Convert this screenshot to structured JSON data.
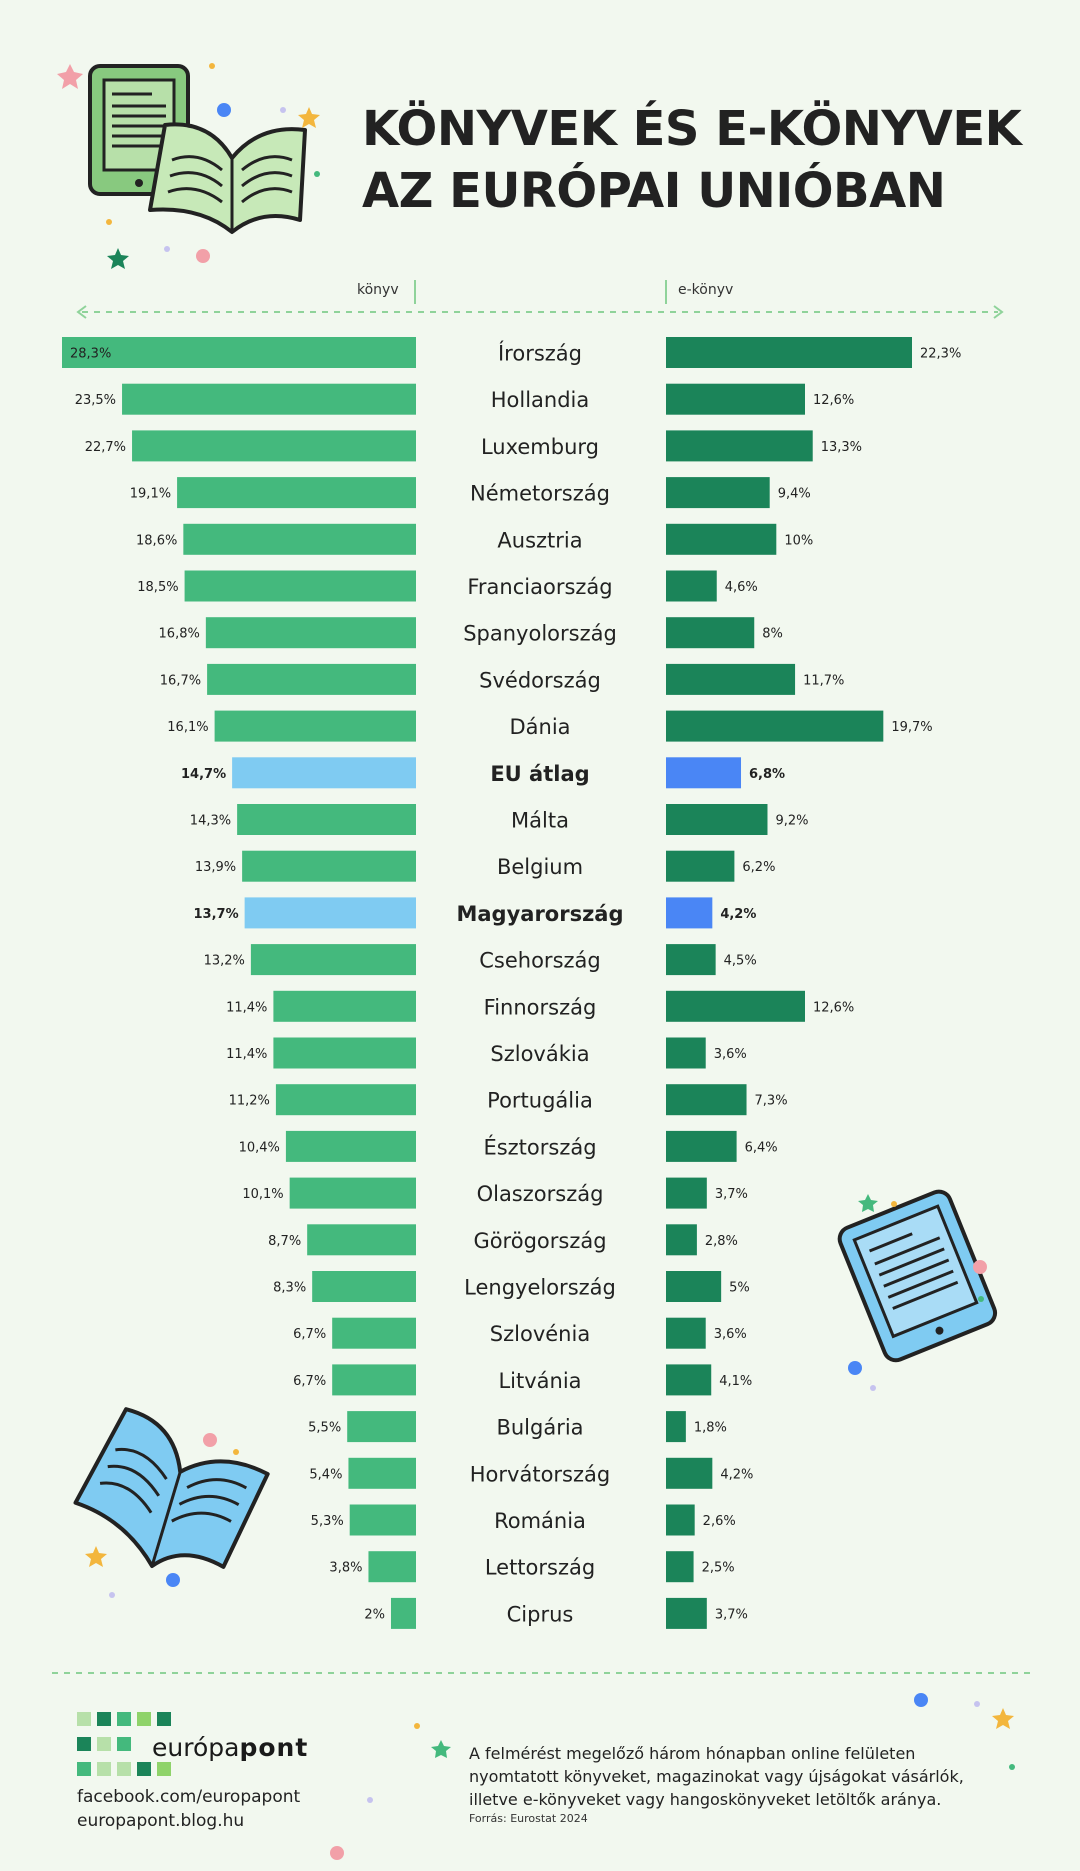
{
  "title": {
    "line1": "KÖNYVEK ÉS E-KÖNYVEK",
    "line2": "AZ EURÓPAI UNIÓBAN"
  },
  "chart_data": {
    "type": "bar",
    "layout": "butterfly",
    "left_label": "könyv",
    "right_label": "e-könyv",
    "categories": [
      "Írország",
      "Hollandia",
      "Luxemburg",
      "Németország",
      "Ausztria",
      "Franciaország",
      "Spanyolország",
      "Svédország",
      "Dánia",
      "EU átlag",
      "Málta",
      "Belgium",
      "Magyarország",
      "Csehország",
      "Finnország",
      "Szlovákia",
      "Portugália",
      "Észtország",
      "Olaszország",
      "Görögország",
      "Lengyelország",
      "Szlovénia",
      "Litvánia",
      "Bulgária",
      "Horvátország",
      "Románia",
      "Lettország",
      "Ciprus"
    ],
    "highlight": [
      "EU átlag",
      "Magyarország"
    ],
    "series": [
      {
        "name": "könyv",
        "values": [
          28.3,
          23.5,
          22.7,
          19.1,
          18.6,
          18.5,
          16.8,
          16.7,
          16.1,
          14.7,
          14.3,
          13.9,
          13.7,
          13.2,
          11.4,
          11.4,
          11.2,
          10.4,
          10.1,
          8.7,
          8.3,
          6.7,
          6.7,
          5.5,
          5.4,
          5.3,
          3.8,
          2
        ],
        "labels": [
          "28,3%",
          "23,5%",
          "22,7%",
          "19,1%",
          "18,6%",
          "18,5%",
          "16,8%",
          "16,7%",
          "16,1%",
          "14,7%",
          "14,3%",
          "13,9%",
          "13,7%",
          "13,2%",
          "11,4%",
          "11,4%",
          "11,2%",
          "10,4%",
          "10,1%",
          "8,7%",
          "8,3%",
          "6,7%",
          "6,7%",
          "5,5%",
          "5,4%",
          "5,3%",
          "3,8%",
          "2%"
        ]
      },
      {
        "name": "e-könyv",
        "values": [
          22.3,
          12.6,
          13.3,
          9.4,
          10,
          4.6,
          8,
          11.7,
          19.7,
          6.8,
          9.2,
          6.2,
          4.2,
          4.5,
          12.6,
          3.6,
          7.3,
          6.4,
          3.7,
          2.8,
          5,
          3.6,
          4.1,
          1.8,
          4.2,
          2.6,
          2.5,
          3.7
        ],
        "labels": [
          "22,3%",
          "12,6%",
          "13,3%",
          "9,4%",
          "10%",
          "4,6%",
          "8%",
          "11,7%",
          "19,7%",
          "6,8%",
          "9,2%",
          "6,2%",
          "4,2%",
          "4,5%",
          "12,6%",
          "3,6%",
          "7,3%",
          "6,4%",
          "3,7%",
          "2,8%",
          "5%",
          "3,6%",
          "4,1%",
          "1,8%",
          "4,2%",
          "2,6%",
          "2,5%",
          "3,7%"
        ]
      }
    ],
    "colors": {
      "book": "#44b97d",
      "book_highlight": "#7fcbf2",
      "ebook": "#1b8459",
      "ebook_highlight": "#4a86f5"
    }
  },
  "footer": {
    "brand_light": "európa",
    "brand_bold": "pont",
    "facebook": "facebook.com/europapont",
    "blog": "europapont.blog.hu",
    "note": "A felmérést megelőző három hónapban online felületen nyomtatott könyveket, magazinokat vagy újságokat vásárlók, illetve e-könyveket vagy hangoskönyveket letöltők aránya.",
    "source": "Forrás: Eurostat 2024"
  },
  "icons": [
    "ebook-reader-icon",
    "open-book-icon",
    "tablet-icon",
    "star-icon",
    "dot-icon"
  ]
}
